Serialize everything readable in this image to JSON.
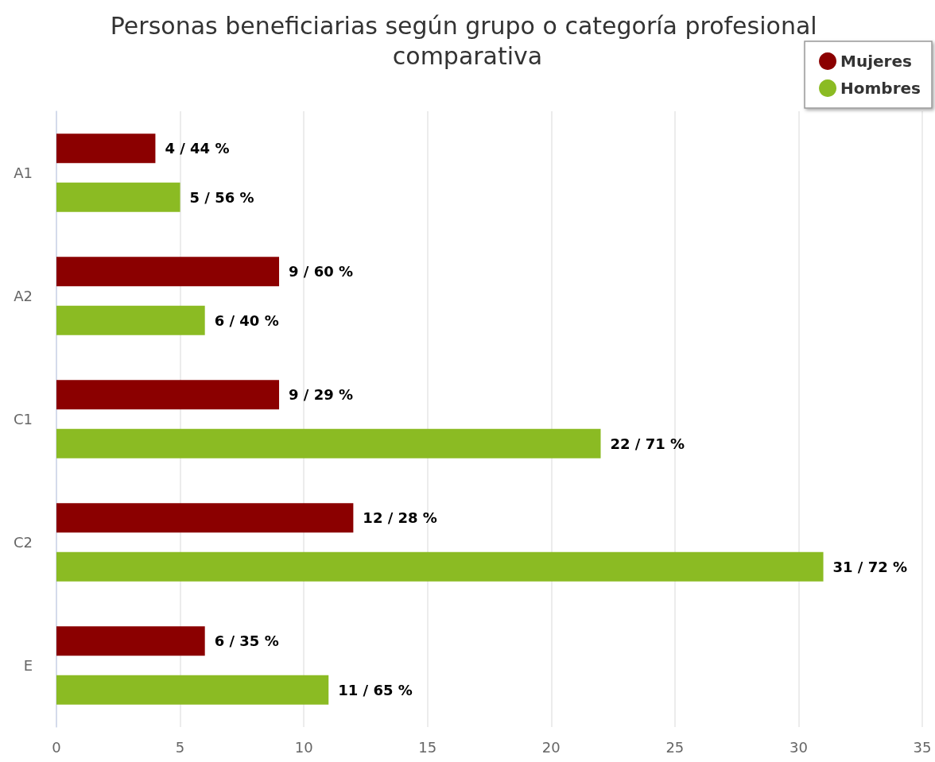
{
  "chart_data": {
    "type": "bar",
    "orientation": "horizontal",
    "title": "Personas beneficiarias según grupo o categoría profesional comparativa",
    "categories": [
      "A1",
      "A2",
      "C1",
      "C2",
      "E"
    ],
    "series": [
      {
        "name": "Mujeres",
        "color": "#8b0000",
        "values": [
          4,
          9,
          9,
          12,
          6
        ],
        "value_labels": [
          "4 / 44 %",
          "9 / 60 %",
          "9 / 29 %",
          "12 / 28 %",
          "6 / 35 %"
        ]
      },
      {
        "name": "Hombres",
        "color": "#8bbb23",
        "values": [
          5,
          6,
          22,
          31,
          11
        ],
        "value_labels": [
          "5 / 56 %",
          "6 / 40 %",
          "22 / 71 %",
          "31 / 72 %",
          "11 / 65 %"
        ]
      }
    ],
    "xlim": [
      0,
      35
    ],
    "xticks": [
      0,
      5,
      10,
      15,
      20,
      25,
      30,
      35
    ],
    "grid": "x",
    "legend": "top right"
  }
}
